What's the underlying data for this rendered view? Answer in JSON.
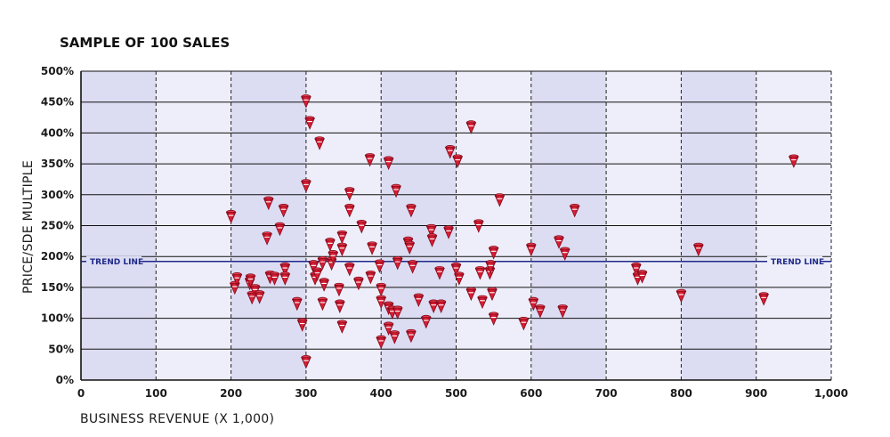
{
  "chart_data": {
    "type": "scatter",
    "title": "SAMPLE OF 100 SALES",
    "xlabel": "BUSINESS REVENUE (X 1,000)",
    "ylabel": "PRICE/SDE MULTIPLE",
    "xlim": [
      0,
      1000
    ],
    "ylim": [
      0,
      500
    ],
    "x_ticks": [
      "0",
      "100",
      "200",
      "300",
      "400",
      "500",
      "600",
      "700",
      "800",
      "900",
      "1,000"
    ],
    "y_ticks": [
      "0%",
      "50%",
      "100%",
      "150%",
      "200%",
      "250%",
      "300%",
      "350%",
      "400%",
      "450%",
      "500%"
    ],
    "grid": true,
    "trend_line": {
      "label": "TREND LINE",
      "y": 192
    },
    "colors": {
      "marker": "#c8102e",
      "band_light": "#eeeefa",
      "band_dark": "#dcdcf2",
      "trend": "#1f2a8a"
    },
    "marker_icon": "red-cone-marker",
    "points": [
      [
        200,
        263
      ],
      [
        205,
        148
      ],
      [
        208,
        162
      ],
      [
        225,
        155
      ],
      [
        226,
        160
      ],
      [
        228,
        132
      ],
      [
        232,
        143
      ],
      [
        238,
        133
      ],
      [
        248,
        228
      ],
      [
        250,
        285
      ],
      [
        252,
        165
      ],
      [
        258,
        163
      ],
      [
        265,
        243
      ],
      [
        270,
        273
      ],
      [
        272,
        178
      ],
      [
        272,
        163
      ],
      [
        288,
        122
      ],
      [
        295,
        88
      ],
      [
        300,
        313
      ],
      [
        300,
        450
      ],
      [
        300,
        28
      ],
      [
        305,
        415
      ],
      [
        310,
        182
      ],
      [
        312,
        163
      ],
      [
        315,
        170
      ],
      [
        318,
        382
      ],
      [
        322,
        122
      ],
      [
        322,
        188
      ],
      [
        324,
        153
      ],
      [
        332,
        218
      ],
      [
        334,
        187
      ],
      [
        336,
        198
      ],
      [
        344,
        145
      ],
      [
        345,
        118
      ],
      [
        348,
        230
      ],
      [
        348,
        210
      ],
      [
        348,
        85
      ],
      [
        358,
        300
      ],
      [
        358,
        273
      ],
      [
        358,
        178
      ],
      [
        370,
        155
      ],
      [
        374,
        247
      ],
      [
        385,
        355
      ],
      [
        386,
        165
      ],
      [
        388,
        212
      ],
      [
        398,
        183
      ],
      [
        400,
        145
      ],
      [
        400,
        125
      ],
      [
        400,
        60
      ],
      [
        410,
        115
      ],
      [
        410,
        82
      ],
      [
        410,
        350
      ],
      [
        415,
        108
      ],
      [
        418,
        68
      ],
      [
        420,
        305
      ],
      [
        422,
        108
      ],
      [
        422,
        188
      ],
      [
        436,
        220
      ],
      [
        438,
        213
      ],
      [
        440,
        273
      ],
      [
        440,
        70
      ],
      [
        442,
        182
      ],
      [
        450,
        128
      ],
      [
        460,
        93
      ],
      [
        467,
        240
      ],
      [
        468,
        225
      ],
      [
        470,
        118
      ],
      [
        478,
        172
      ],
      [
        480,
        118
      ],
      [
        490,
        238
      ],
      [
        492,
        368
      ],
      [
        500,
        178
      ],
      [
        502,
        353
      ],
      [
        504,
        163
      ],
      [
        520,
        408
      ],
      [
        520,
        138
      ],
      [
        530,
        248
      ],
      [
        532,
        172
      ],
      [
        535,
        125
      ],
      [
        545,
        172
      ],
      [
        546,
        182
      ],
      [
        548,
        138
      ],
      [
        550,
        205
      ],
      [
        550,
        98
      ],
      [
        558,
        290
      ],
      [
        590,
        90
      ],
      [
        600,
        210
      ],
      [
        603,
        122
      ],
      [
        612,
        110
      ],
      [
        637,
        222
      ],
      [
        642,
        110
      ],
      [
        645,
        203
      ],
      [
        658,
        273
      ],
      [
        740,
        178
      ],
      [
        742,
        163
      ],
      [
        748,
        166
      ],
      [
        800,
        135
      ],
      [
        823,
        210
      ],
      [
        910,
        130
      ],
      [
        950,
        353
      ]
    ]
  }
}
